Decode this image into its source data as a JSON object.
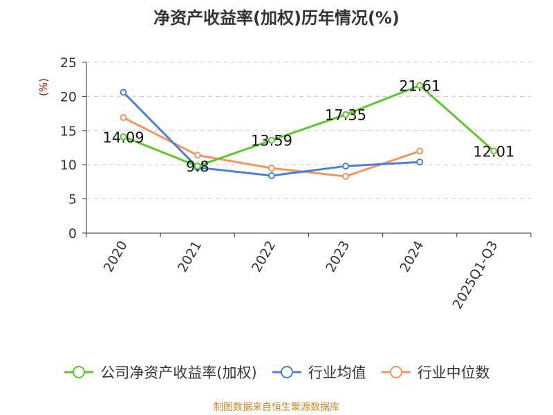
{
  "chart_data": {
    "type": "line",
    "title": "净资产收益率(加权)历年情况(%)",
    "ylabel": "(%)",
    "categories": [
      "2020",
      "2021",
      "2022",
      "2023",
      "2024",
      "2025Q1-Q3"
    ],
    "ylim": [
      0,
      25
    ],
    "yticks": [
      0,
      5,
      10,
      15,
      20,
      25
    ],
    "grid": true,
    "legend_position": "bottom",
    "series": [
      {
        "name": "公司净资产收益率(加权)",
        "color": "#5cc72a",
        "values": [
          14.09,
          9.8,
          13.59,
          17.35,
          21.61,
          12.01
        ],
        "labels": [
          "14.09",
          "9.8",
          "13.59",
          "17.35",
          "21.61",
          "12.01"
        ]
      },
      {
        "name": "行业均值",
        "color": "#4b7fd6",
        "values": [
          20.6,
          9.6,
          8.4,
          9.8,
          10.4,
          null
        ]
      },
      {
        "name": "行业中位数",
        "color": "#f59461",
        "values": [
          16.9,
          11.4,
          9.5,
          8.3,
          12.0,
          null
        ]
      }
    ]
  },
  "source": "制图数据来自恒生聚源数据库"
}
